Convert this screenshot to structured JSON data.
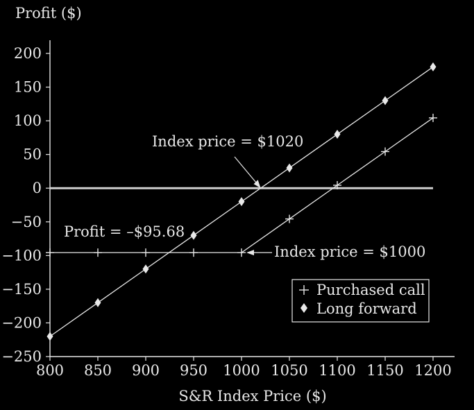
{
  "chart_data": {
    "type": "line",
    "ylabel": "Profit ($)",
    "xlabel": "S&R Index Price ($)",
    "xlim": [
      800,
      1200
    ],
    "ylim": [
      -250,
      200
    ],
    "x_ticks": [
      800,
      850,
      900,
      950,
      1000,
      1050,
      1100,
      1150,
      1200
    ],
    "y_ticks": [
      200,
      150,
      100,
      50,
      0,
      -50,
      -100,
      -150,
      -200,
      -250
    ],
    "y_tick_labels": [
      "200",
      "150",
      "100",
      "50",
      "0",
      "−50",
      "−100",
      "−150",
      "−200",
      "−250"
    ],
    "grid": false,
    "legend_position": "lower-right",
    "series": [
      {
        "name": "Purchased call",
        "marker": "plus",
        "x": [
          800,
          850,
          900,
          950,
          1000,
          1050,
          1100,
          1150,
          1200
        ],
        "y": [
          -95.68,
          -95.68,
          -95.68,
          -95.68,
          -95.68,
          -45.68,
          4.32,
          54.32,
          104.32
        ]
      },
      {
        "name": "Long forward",
        "marker": "diamond",
        "x": [
          800,
          850,
          900,
          950,
          1000,
          1050,
          1100,
          1150,
          1200
        ],
        "y": [
          -220,
          -170,
          -120,
          -70,
          -20,
          30,
          80,
          130,
          180
        ]
      }
    ],
    "annotations": [
      {
        "text": "Index price = $1020",
        "x": 1020,
        "y": 0
      },
      {
        "text": "Index price = $1000",
        "x": 1000,
        "y": -95.68
      },
      {
        "text": "Profit = –$95.68",
        "x": 800,
        "y": -95.68
      }
    ]
  },
  "colors": {
    "background": "#000000",
    "foreground": "#e8e8e8",
    "zero_line": "#cfcfcf"
  }
}
